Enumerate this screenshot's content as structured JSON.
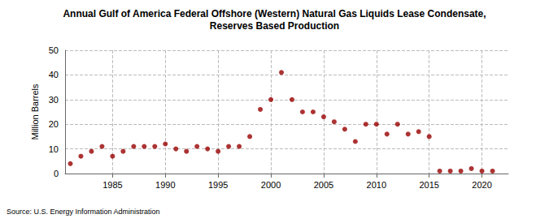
{
  "chart_data": {
    "type": "scatter",
    "title": "Annual Gulf of America Federal Offshore (Western) Natural Gas Liquids Lease Condensate,\nReserves Based Production",
    "y_label": "Million Barrels",
    "annotations": [
      "Source: U.S. Energy Information Administration"
    ],
    "x": [
      1981,
      1982,
      1983,
      1984,
      1985,
      1986,
      1987,
      1988,
      1989,
      1990,
      1991,
      1992,
      1993,
      1994,
      1995,
      1996,
      1997,
      1998,
      1999,
      2000,
      2001,
      2002,
      2003,
      2004,
      2005,
      2006,
      2007,
      2008,
      2009,
      2010,
      2011,
      2012,
      2013,
      2014,
      2015,
      2016,
      2017,
      2018,
      2019,
      2020,
      2021
    ],
    "values": [
      4,
      7,
      9,
      11,
      7,
      9,
      11,
      11,
      11,
      12,
      10,
      9,
      11,
      10,
      9,
      11,
      11,
      15,
      26,
      30,
      41,
      30,
      25,
      25,
      23,
      21,
      18,
      13,
      20,
      20,
      16,
      20,
      16,
      17,
      15,
      1,
      1,
      1,
      2,
      1,
      1
    ],
    "color": "#990000",
    "marker": "circle",
    "xlim": [
      1980.5,
      2022.5
    ],
    "xticks": [
      1985,
      1990,
      1995,
      2000,
      2005,
      2010,
      2015,
      2020
    ],
    "ylim": [
      0,
      50
    ],
    "yticks": [
      0,
      10,
      20,
      30,
      40,
      50
    ],
    "grid": true
  }
}
